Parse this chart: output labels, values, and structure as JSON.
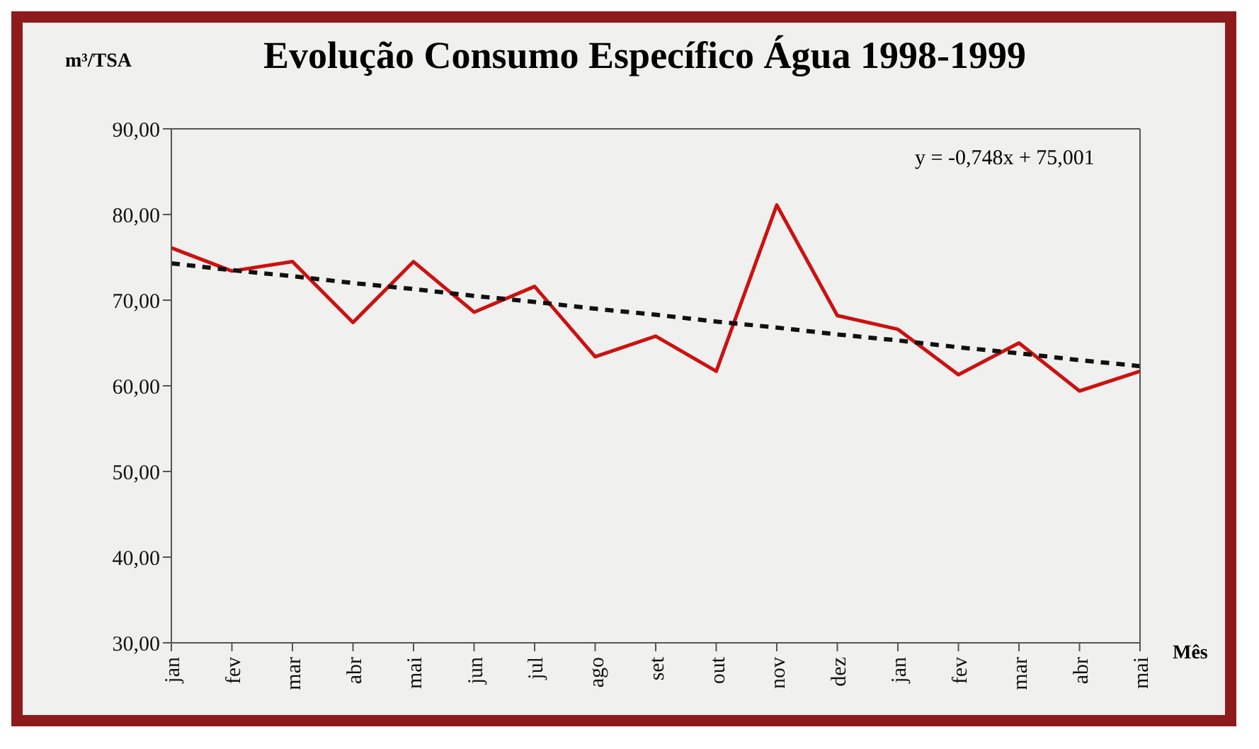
{
  "chart_data": {
    "type": "line",
    "title": "Evolução Consumo Específico Água 1998-1999",
    "ylabel": "m³/TSA",
    "xlabel": "Mês",
    "categories": [
      "jan",
      "fev",
      "mar",
      "abr",
      "mai",
      "jun",
      "jul",
      "ago",
      "set",
      "out",
      "nov",
      "dez",
      "jan",
      "fev",
      "mar",
      "abr",
      "mai"
    ],
    "series": [
      {
        "color": "#cc1111",
        "values": [
          76.1,
          73.4,
          74.5,
          67.4,
          74.5,
          68.6,
          71.6,
          63.4,
          65.8,
          61.7,
          81.1,
          68.2,
          66.6,
          61.3,
          65.0,
          59.4,
          61.7
        ],
        "line_style": "solid"
      },
      {
        "color": "#111111",
        "values": [
          74.3,
          73.5,
          72.8,
          72.0,
          71.3,
          70.5,
          69.8,
          69.0,
          68.3,
          67.5,
          66.8,
          66.0,
          65.3,
          64.5,
          63.8,
          63.0,
          62.3
        ],
        "line_style": "dashed"
      }
    ],
    "annotations": [
      "y = -0,748x + 75,001"
    ],
    "ylim": [
      30,
      90
    ],
    "yticks": [
      {
        "value": 30,
        "label": "30,00"
      },
      {
        "value": 40,
        "label": "40,00"
      },
      {
        "value": 50,
        "label": "50,00"
      },
      {
        "value": 60,
        "label": "60,00"
      },
      {
        "value": 70,
        "label": "70,00"
      },
      {
        "value": 80,
        "label": "80,00"
      },
      {
        "value": 90,
        "label": "90,00"
      }
    ],
    "marker": "none"
  }
}
